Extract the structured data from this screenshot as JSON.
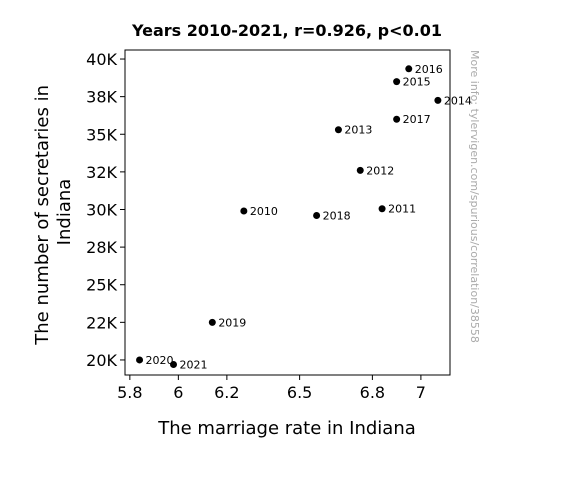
{
  "chart_data": {
    "type": "scatter",
    "title": "Years 2010-2021, r=0.926, p<0.01",
    "xlabel": "The marriage rate in Indiana",
    "ylabel_lines": [
      "The number of secretaries in",
      "Indiana"
    ],
    "xlim": [
      5.78,
      7.12
    ],
    "ylim": [
      19000,
      40600
    ],
    "xticks": [
      5.8,
      6.0,
      6.2,
      6.5,
      6.8,
      7.0
    ],
    "xtick_labels": [
      "5.8",
      "6",
      "6.2",
      "6.5",
      "6.8",
      "7"
    ],
    "yticks": [
      20000,
      22500,
      25000,
      27500,
      30000,
      32500,
      35000,
      37500,
      40000
    ],
    "ytick_labels": [
      "20K",
      "22K",
      "25K",
      "28K",
      "30K",
      "32K",
      "35K",
      "38K",
      "40K"
    ],
    "grid": false,
    "marker_color": "#000000",
    "points": [
      {
        "label": "2010",
        "x": 6.27,
        "y": 29900
      },
      {
        "label": "2011",
        "x": 6.84,
        "y": 30050
      },
      {
        "label": "2012",
        "x": 6.75,
        "y": 32600
      },
      {
        "label": "2013",
        "x": 6.66,
        "y": 35300
      },
      {
        "label": "2014",
        "x": 7.07,
        "y": 37250
      },
      {
        "label": "2015",
        "x": 6.9,
        "y": 38500
      },
      {
        "label": "2016",
        "x": 6.95,
        "y": 39350
      },
      {
        "label": "2017",
        "x": 6.9,
        "y": 36000
      },
      {
        "label": "2018",
        "x": 6.57,
        "y": 29600
      },
      {
        "label": "2019",
        "x": 6.14,
        "y": 22500
      },
      {
        "label": "2020",
        "x": 5.84,
        "y": 20000
      },
      {
        "label": "2021",
        "x": 5.98,
        "y": 19700
      }
    ],
    "watermark": "More info: tylervigen.com/spurious/correlation/38558",
    "watermark_color": "#aaaaaa"
  }
}
